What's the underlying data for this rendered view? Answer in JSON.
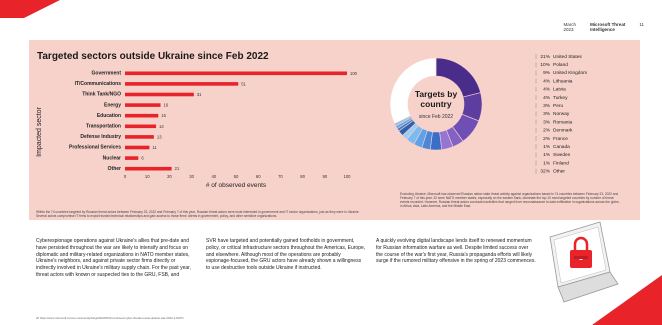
{
  "header": {
    "date": "March\n2023",
    "brand": "Microsoft Threat\nIntelligence",
    "page": "11"
  },
  "chart_data": [
    {
      "type": "bar",
      "title": "Targeted sectors outside Ukraine since Feb 2022",
      "ylabel": "Impacted sector",
      "xlabel": "# of observed events",
      "categories": [
        "Government",
        "IT/Communications",
        "Think Tank/NGO",
        "Energy",
        "Education",
        "Transportation",
        "Defense Industry",
        "Professional Services",
        "Nuclear",
        "Other"
      ],
      "values": [
        100,
        51,
        31,
        16,
        15,
        14,
        13,
        11,
        6,
        21
      ],
      "xlim": [
        0,
        100
      ],
      "xticks": [
        0,
        10,
        20,
        30,
        40,
        50,
        60,
        70,
        80,
        90,
        100
      ],
      "bar_color": "#e8232a"
    },
    {
      "type": "pie",
      "title": "Targets by country",
      "subtitle": "since Feb 2022",
      "categories": [
        "United States",
        "Poland",
        "United Kingdom",
        "Lithuania",
        "Latvia",
        "Turkey",
        "Peru",
        "Norway",
        "Romania",
        "Denmark",
        "France",
        "Canada",
        "Sweden",
        "Finland",
        "Other"
      ],
      "labels": [
        "21%",
        "10%",
        "9%",
        "4%",
        "4%",
        "4%",
        "3%",
        "3%",
        "3%",
        "2%",
        "2%",
        "1%",
        "1%",
        "1%",
        "32%"
      ],
      "values": [
        21,
        10,
        9,
        4,
        4,
        4,
        3,
        3,
        3,
        2,
        2,
        1,
        1,
        1,
        32
      ],
      "colors": [
        "#4a2d8a",
        "#5d3da0",
        "#6f4fb5",
        "#8462c5",
        "#9674d1",
        "#3a6ec9",
        "#4a87db",
        "#5fa0e6",
        "#7cb9ef",
        "#9dcdf4",
        "#2f5fae",
        "#3e7ccc",
        "#62a3e1",
        "#8fc2ef",
        "#ffffff"
      ]
    }
  ],
  "footnote": "Within the 74 countries targeted by Russian threat actors between February 23, 2022 and February 7 of this year, Russian threat actors were most interested in government and IT sector organizations, just as they were in Ukraine. Several actors compromise IT firms to exploit trusted technical relationships and gain access to those firms' clients in government, policy, and other sensitive organizations.",
  "right_note": "Excluding Ukraine, Microsoft has observed Russian nation state threat activity against organizations based in 74 countries between February 23, 2022 and February 7 of this year. 32 were NATO member states, especially on the eastern flank, dominate the top 10 most targeted countries by number of threat events recorded. However, Russian threat actors conducted activities that ranged from reconnaissance to data exfiltration in organizations across the globe, in Africa, Asia, Latin America, and the Middle East.",
  "body": {
    "col1": "Cyberespionage operations against Ukraine's allies that pre-date and have persisted throughout the war are likely to intensify and focus on diplomatic and military-related organizations in NATO member states, Ukraine's neighbors, and against private sector firms directly or indirectly involved in Ukraine's military supply chain. For the past year, threat actors with known or suspected ties to the GRU, FSB, and",
    "col2": "SVR have targeted and potentially gained footholds in government, policy, or critical infrastructure sectors throughout the Americas, Europe, and elsewhere. Although most of the operations are probably espionage-focused, the GRU actors have already shown a willingness to use destructive tools outside Ukraine if instructed.",
    "col3": "A quickly evolving digital landscape lends itself to renewed momentum for Russian information warfare as well. Despite limited success over the course of the war's first year, Russia's propaganda efforts will likely surge if the rumored military offensive in the spring of 2023 commences.",
    "ref": "20 https://www.microsoft.com/en-us/security/blog/2022/06/21/continued-cyber-threats-russia-ukraine-war-2022-1-NATO"
  }
}
